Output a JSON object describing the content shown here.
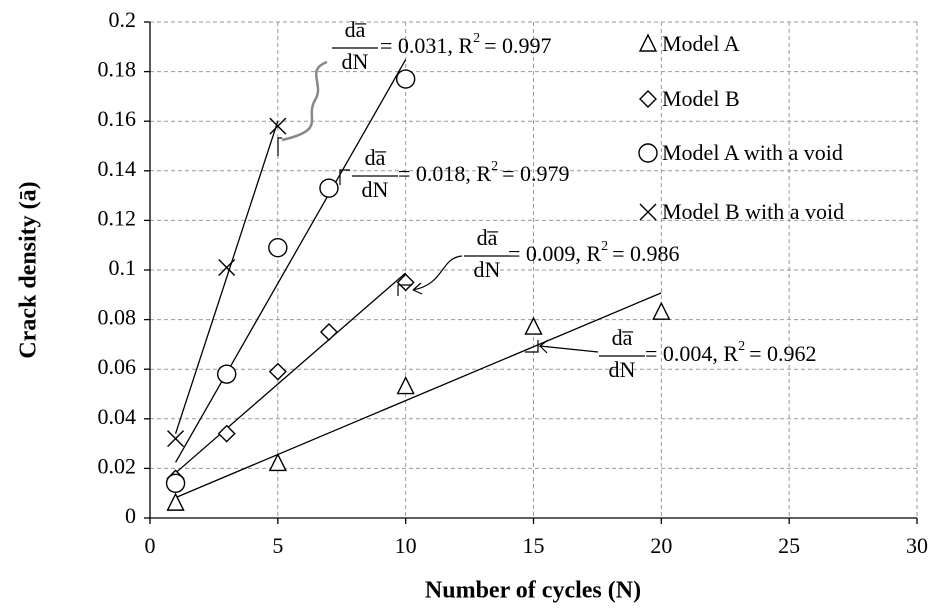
{
  "chart_data": {
    "type": "scatter",
    "x_label": "Number of cycles (N)",
    "y_label": "Crack density (ā)",
    "xlim": [
      0,
      30
    ],
    "xticks": [
      0,
      5,
      10,
      15,
      20,
      25,
      30
    ],
    "ylim": [
      0,
      0.2
    ],
    "yticks": [
      0,
      0.02,
      0.04,
      0.06,
      0.08,
      0.1,
      0.12,
      0.14,
      0.16,
      0.18,
      0.2
    ],
    "grid": true,
    "legend": "top-right",
    "trendline": "linear",
    "series": [
      {
        "name": "Model A",
        "color": "#000000",
        "marker": "triangle",
        "x": [
          1,
          5,
          10,
          15,
          20
        ],
        "values": [
          0.006,
          0.022,
          0.053,
          0.077,
          0.083
        ]
      },
      {
        "name": "Model B",
        "color": "#000000",
        "marker": "diamond",
        "x": [
          1,
          3,
          5,
          7,
          10
        ],
        "values": [
          0.016,
          0.034,
          0.059,
          0.075,
          0.095
        ]
      },
      {
        "name": "Model A with a void",
        "color": "#000000",
        "marker": "circle",
        "x": [
          1,
          3,
          5,
          7,
          10
        ],
        "values": [
          0.014,
          0.058,
          0.109,
          0.133,
          0.177
        ]
      },
      {
        "name": "Model B with a void",
        "color": "#000000",
        "marker": "x",
        "x": [
          1,
          3,
          5
        ],
        "values": [
          0.032,
          0.101,
          0.158
        ]
      }
    ],
    "annotations": [
      {
        "numerator": "da̅",
        "denominator": "dN",
        "text": "= 0.031,  R",
        "sup": "2",
        "r2": "= 0.997"
      },
      {
        "numerator": "da̅",
        "denominator": "dN",
        "text": "= 0.018,  R",
        "sup": "2",
        "r2": "= 0.979"
      },
      {
        "numerator": "da̅",
        "denominator": "dN",
        "text": "= 0.009,  R",
        "sup": "2",
        "r2": "= 0.986"
      },
      {
        "numerator": "da̅",
        "denominator": "dN",
        "text": "= 0.004,  R",
        "sup": "2",
        "r2": "= 0.962"
      }
    ]
  }
}
